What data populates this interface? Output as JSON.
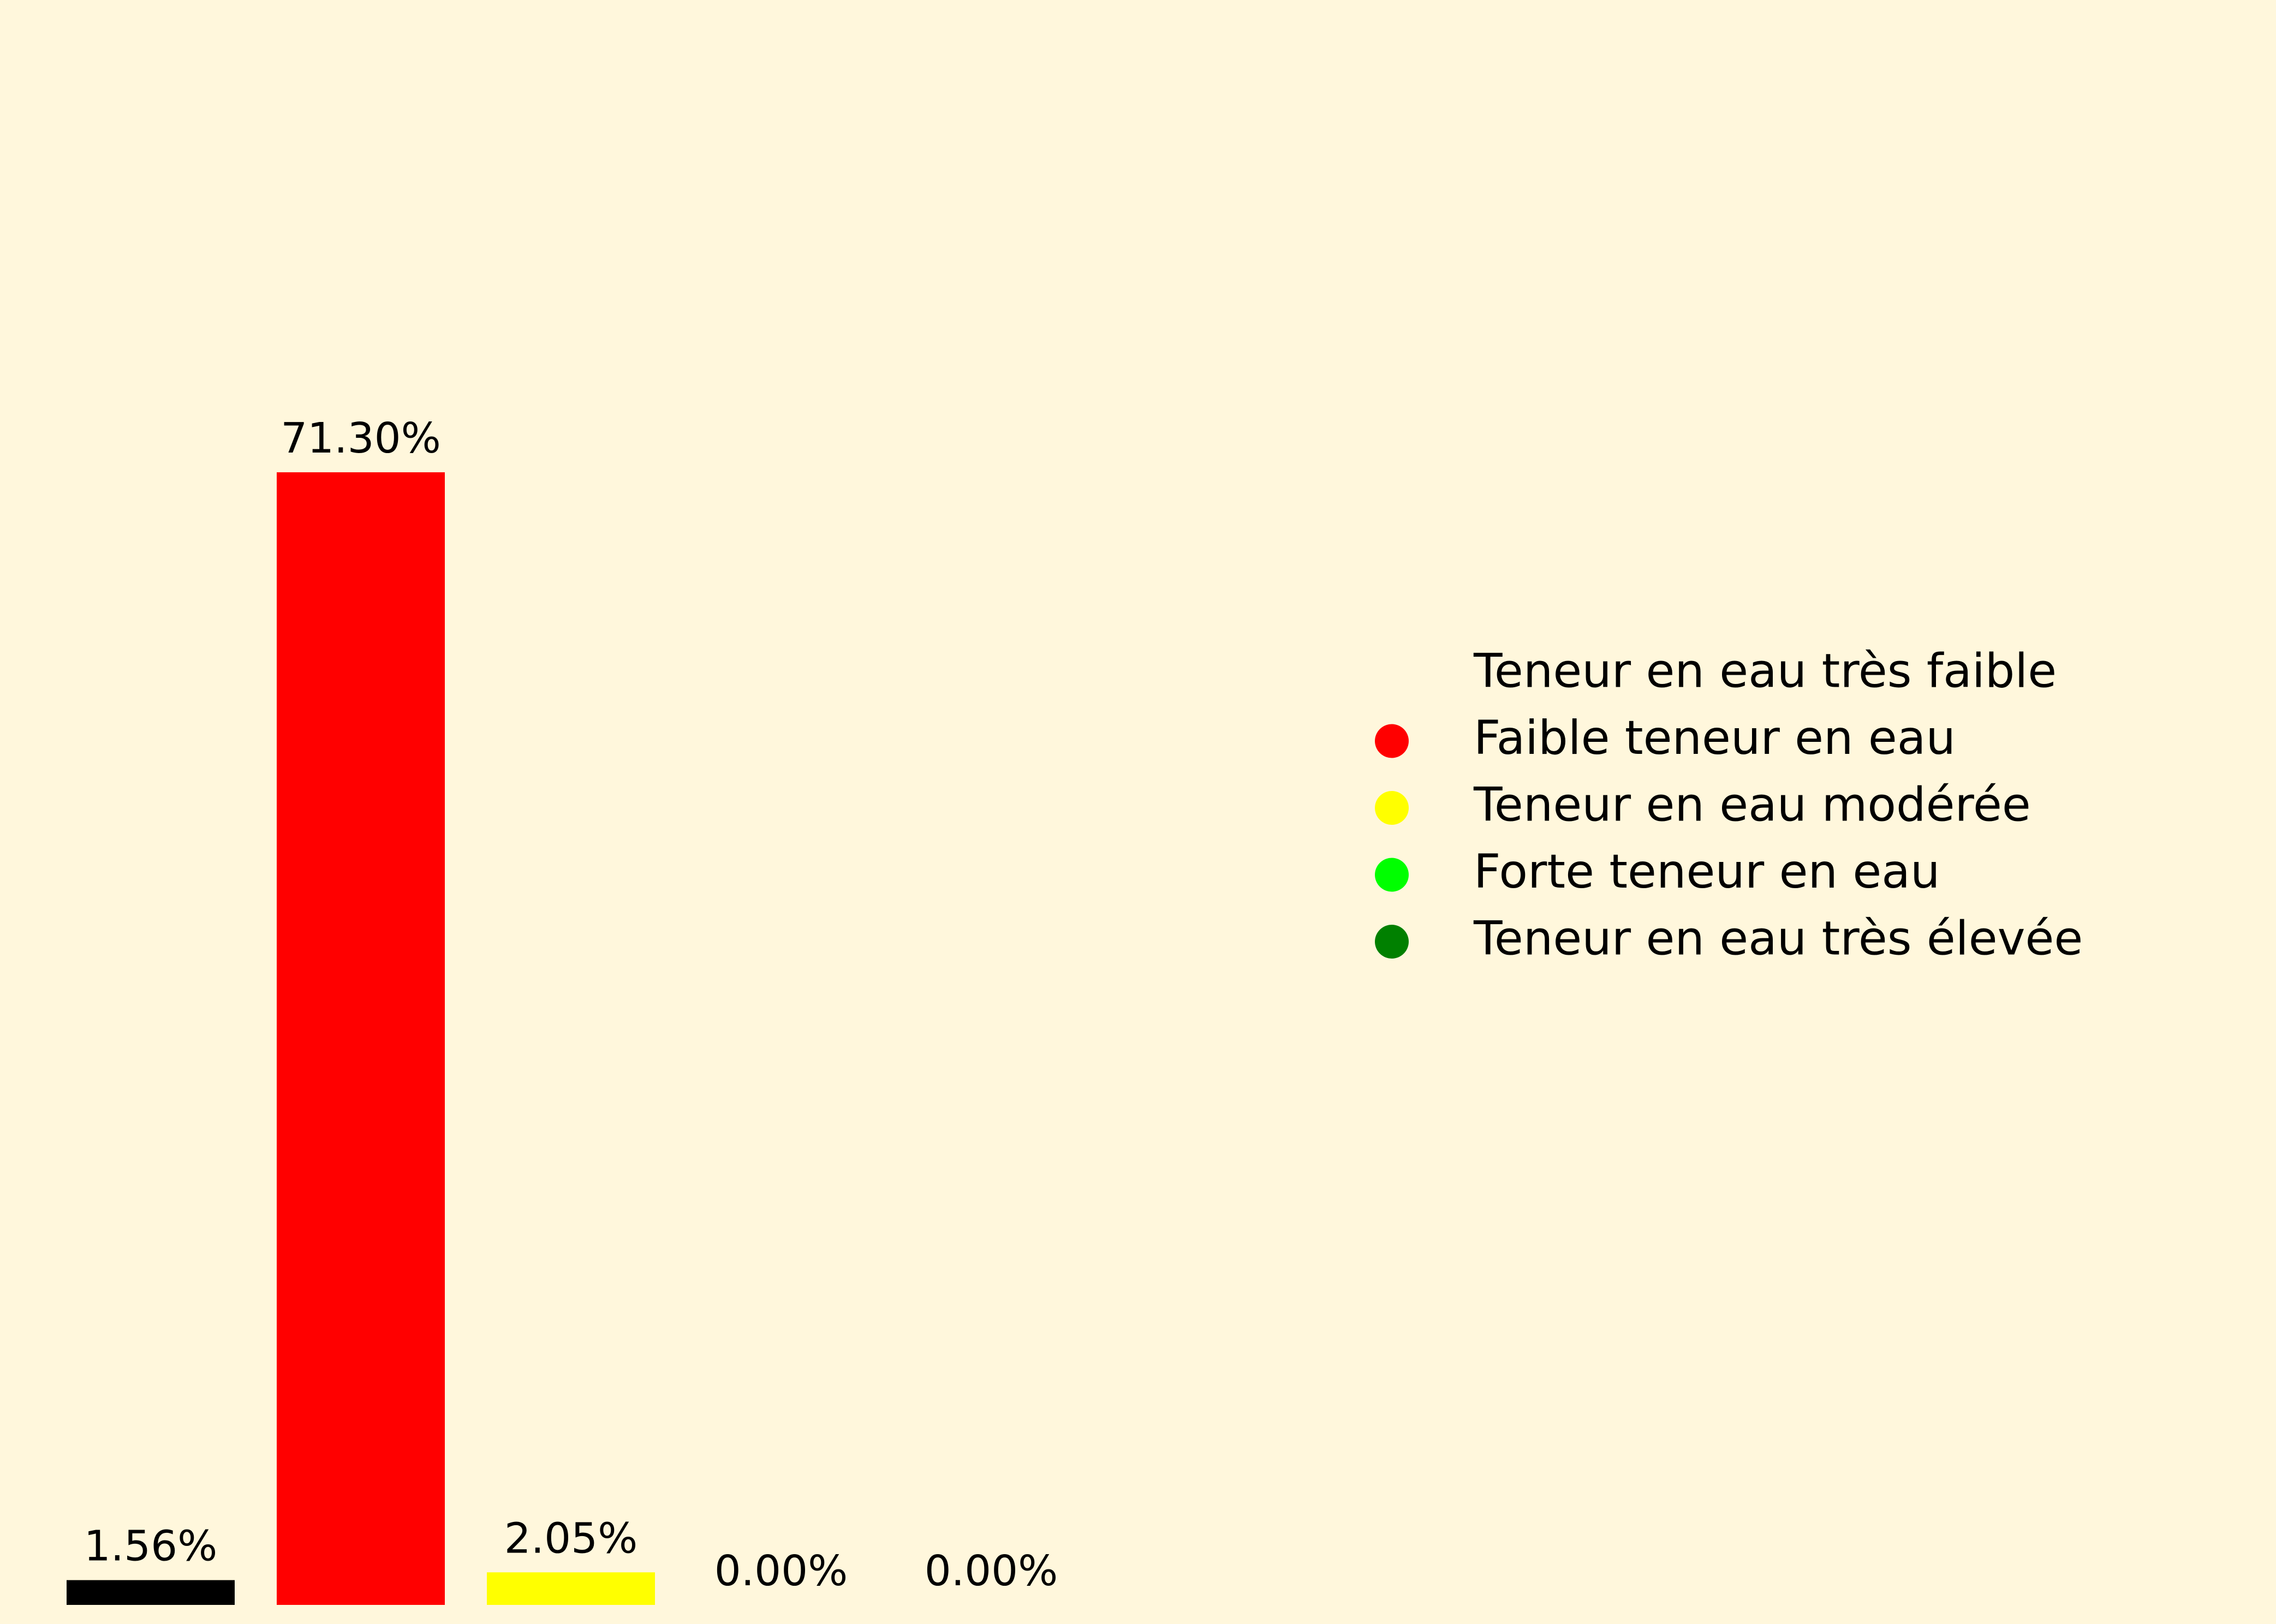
{
  "chart_data": {
    "type": "bar",
    "categories": [
      "Teneur en eau très faible",
      "Faible teneur en eau",
      "Teneur en eau modérée",
      "Forte teneur en eau",
      "Teneur en eau très élevée"
    ],
    "values": [
      1.56,
      71.3,
      2.05,
      0.0,
      0.0
    ],
    "data_labels": [
      "1.56%",
      "71.30%",
      "2.05%",
      "0.00%",
      "0.00%"
    ],
    "colors": [
      "#000000",
      "#ff0000",
      "#ffff00",
      "#00ff00",
      "#008000"
    ],
    "background_color": "#fff7dc",
    "ylim": [
      0,
      100
    ],
    "grid": false,
    "axes_visible": false,
    "legend": {
      "placement": "right",
      "entries": [
        {
          "label": "Teneur en eau très faible",
          "color": "#000000"
        },
        {
          "label": "Faible teneur en eau",
          "color": "#ff0000"
        },
        {
          "label": "Teneur en eau modérée",
          "color": "#ffff00"
        },
        {
          "label": "Forte teneur en eau",
          "color": "#00ff00"
        },
        {
          "label": "Teneur en eau très élevée",
          "color": "#008000"
        }
      ]
    }
  }
}
